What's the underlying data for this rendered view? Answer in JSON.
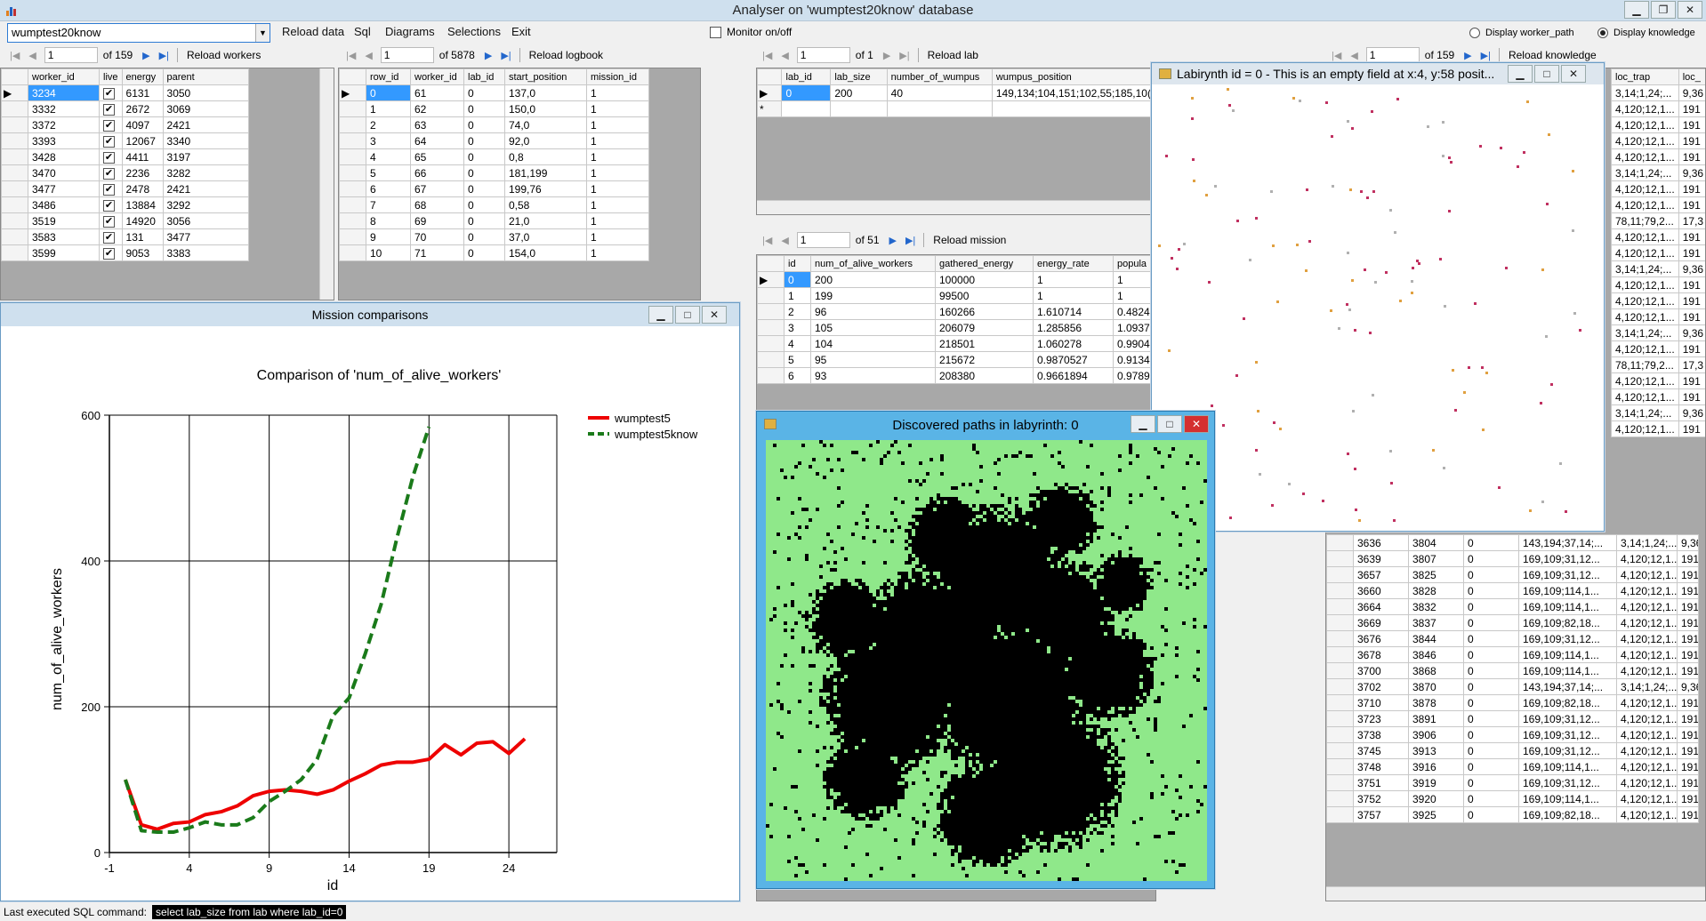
{
  "app": {
    "title": "Analyser on 'wumptest20know' database"
  },
  "menu": {
    "db_combo": "wumptest20know",
    "items": [
      "Reload data",
      "Sql",
      "Diagrams",
      "Selections",
      "Exit"
    ],
    "monitor_label": "Monitor on/off",
    "display_worker_path": "Display worker_path",
    "display_knowledge": "Display knowledge"
  },
  "nav_workers": {
    "pos": "1",
    "of": "of 159",
    "reload": "Reload workers"
  },
  "nav_logbook": {
    "pos": "1",
    "of": "of 5878",
    "reload": "Reload logbook"
  },
  "nav_lab": {
    "pos": "1",
    "of": "of 1",
    "reload": "Reload lab"
  },
  "nav_knowledge": {
    "pos": "1",
    "of": "of 159",
    "reload": "Reload knowledge"
  },
  "nav_mission": {
    "pos": "1",
    "of": "of 51",
    "reload": "Reload mission"
  },
  "workers": {
    "columns": [
      "worker_id",
      "live",
      "energy",
      "parent"
    ],
    "rows": [
      [
        "3234",
        "✔",
        "6131",
        "3050"
      ],
      [
        "3332",
        "✔",
        "2672",
        "3069"
      ],
      [
        "3372",
        "✔",
        "4097",
        "2421"
      ],
      [
        "3393",
        "✔",
        "12067",
        "3340"
      ],
      [
        "3428",
        "✔",
        "4411",
        "3197"
      ],
      [
        "3470",
        "✔",
        "2236",
        "3282"
      ],
      [
        "3477",
        "✔",
        "2478",
        "2421"
      ],
      [
        "3486",
        "✔",
        "13884",
        "3292"
      ],
      [
        "3519",
        "✔",
        "14920",
        "3056"
      ],
      [
        "3583",
        "✔",
        "131",
        "3477"
      ],
      [
        "3599",
        "✔",
        "9053",
        "3383"
      ]
    ]
  },
  "logbook": {
    "columns": [
      "row_id",
      "worker_id",
      "lab_id",
      "start_position",
      "mission_id"
    ],
    "rows": [
      [
        "0",
        "61",
        "0",
        "137,0",
        "1"
      ],
      [
        "1",
        "62",
        "0",
        "150,0",
        "1"
      ],
      [
        "2",
        "63",
        "0",
        "74,0",
        "1"
      ],
      [
        "3",
        "64",
        "0",
        "92,0",
        "1"
      ],
      [
        "4",
        "65",
        "0",
        "0,8",
        "1"
      ],
      [
        "5",
        "66",
        "0",
        "181,199",
        "1"
      ],
      [
        "6",
        "67",
        "0",
        "199,76",
        "1"
      ],
      [
        "7",
        "68",
        "0",
        "0,58",
        "1"
      ],
      [
        "8",
        "69",
        "0",
        "21,0",
        "1"
      ],
      [
        "9",
        "70",
        "0",
        "37,0",
        "1"
      ],
      [
        "10",
        "71",
        "0",
        "154,0",
        "1"
      ]
    ]
  },
  "lab": {
    "columns": [
      "lab_id",
      "lab_size",
      "number_of_wumpus",
      "wumpus_position"
    ],
    "rows": [
      [
        "0",
        "200",
        "40",
        "149,134;104,151;102,55;185,10("
      ]
    ],
    "new_row_marker": "*"
  },
  "mission": {
    "columns": [
      "id",
      "num_of_alive_workers",
      "gathered_energy",
      "energy_rate",
      "popula"
    ],
    "rows": [
      [
        "0",
        "200",
        "100000",
        "1",
        "1"
      ],
      [
        "1",
        "199",
        "99500",
        "1",
        "1"
      ],
      [
        "2",
        "96",
        "160266",
        "1.610714",
        "0.4824"
      ],
      [
        "3",
        "105",
        "206079",
        "1.285856",
        "1.0937"
      ],
      [
        "4",
        "104",
        "218501",
        "1.060278",
        "0.9904"
      ],
      [
        "5",
        "95",
        "215672",
        "0.9870527",
        "0.9134"
      ],
      [
        "6",
        "93",
        "208380",
        "0.9661894",
        "0.9789"
      ]
    ]
  },
  "knowledge": {
    "columns": [
      "loc_trap",
      "loc_"
    ],
    "top_rows": [
      [
        "3,14;1,24;...",
        "9,36"
      ],
      [
        "4,120;12,1...",
        "191"
      ],
      [
        "4,120;12,1...",
        "191"
      ],
      [
        "4,120;12,1...",
        "191"
      ],
      [
        "4,120;12,1...",
        "191"
      ],
      [
        "3,14;1,24;...",
        "9,36"
      ],
      [
        "4,120;12,1...",
        "191"
      ],
      [
        "4,120;12,1...",
        "191"
      ],
      [
        "78,11;79,2...",
        "17,3"
      ],
      [
        "4,120;12,1...",
        "191"
      ],
      [
        "4,120;12,1...",
        "191"
      ],
      [
        "3,14;1,24;...",
        "9,36"
      ],
      [
        "4,120;12,1...",
        "191"
      ],
      [
        "4,120;12,1...",
        "191"
      ],
      [
        "4,120;12,1...",
        "191"
      ],
      [
        "3,14;1,24;...",
        "9,36"
      ],
      [
        "4,120;12,1...",
        "191"
      ],
      [
        "78,11;79,2...",
        "17,3"
      ],
      [
        "4,120;12,1...",
        "191"
      ],
      [
        "4,120;12,1...",
        "191"
      ],
      [
        "3,14;1,24;...",
        "9,36"
      ],
      [
        "4,120;12,1...",
        "191"
      ]
    ],
    "bottom_rows": [
      [
        "3636",
        "3804",
        "0",
        "143,194;37,14;...",
        "3,14;1,24;...",
        "9,36"
      ],
      [
        "3639",
        "3807",
        "0",
        "169,109;31,12...",
        "4,120;12,1...",
        "191"
      ],
      [
        "3657",
        "3825",
        "0",
        "169,109;31,12...",
        "4,120;12,1...",
        "191"
      ],
      [
        "3660",
        "3828",
        "0",
        "169,109;114,1...",
        "4,120;12,1...",
        "191"
      ],
      [
        "3664",
        "3832",
        "0",
        "169,109;114,1...",
        "4,120;12,1...",
        "191"
      ],
      [
        "3669",
        "3837",
        "0",
        "169,109;82,18...",
        "4,120;12,1...",
        "191"
      ],
      [
        "3676",
        "3844",
        "0",
        "169,109;31,12...",
        "4,120;12,1...",
        "191"
      ],
      [
        "3678",
        "3846",
        "0",
        "169,109;114,1...",
        "4,120;12,1...",
        "191"
      ],
      [
        "3700",
        "3868",
        "0",
        "169,109;114,1...",
        "4,120;12,1...",
        "191"
      ],
      [
        "3702",
        "3870",
        "0",
        "143,194;37,14;...",
        "3,14;1,24;...",
        "9,36"
      ],
      [
        "3710",
        "3878",
        "0",
        "169,109;82,18...",
        "4,120;12,1...",
        "191"
      ],
      [
        "3723",
        "3891",
        "0",
        "169,109;31,12...",
        "4,120;12,1...",
        "191"
      ],
      [
        "3738",
        "3906",
        "0",
        "169,109;31,12...",
        "4,120;12,1...",
        "191"
      ],
      [
        "3745",
        "3913",
        "0",
        "169,109;31,12...",
        "4,120;12,1...",
        "191"
      ],
      [
        "3748",
        "3916",
        "0",
        "169,109;114,1...",
        "4,120;12,1...",
        "191"
      ],
      [
        "3751",
        "3919",
        "0",
        "169,109;31,12...",
        "4,120;12,1...",
        "191"
      ],
      [
        "3752",
        "3920",
        "0",
        "169,109;114,1...",
        "4,120;12,1...",
        "191"
      ],
      [
        "3757",
        "3925",
        "0",
        "169,109;82,18...",
        "4,120;12,1...",
        "191"
      ]
    ]
  },
  "windows": {
    "mission_comparisons": "Mission comparisons",
    "discovered_paths": "Discovered paths in labyrinth: 0",
    "labyrinth": "Labirynth id = 0 - This is an empty field at x:4, y:58 posit..."
  },
  "status": {
    "label": "Last executed SQL command:",
    "sql": "select lab_size from lab where lab_id=0"
  },
  "colors": {
    "series1": "#ee0000",
    "series2": "#1a7a1a",
    "path_bg": "#8fe88a",
    "path_black": "#000000",
    "selection": "#3399ff"
  },
  "chart_data": {
    "type": "line",
    "title": "Comparison of  'num_of_alive_workers'",
    "xlabel": "id",
    "ylabel": "num_of_alive_workers",
    "xlim": [
      -1,
      27
    ],
    "ylim": [
      0,
      600
    ],
    "xticks": [
      -1,
      4,
      9,
      14,
      19,
      24
    ],
    "yticks": [
      0,
      200,
      400,
      600
    ],
    "grid": true,
    "legend": "top-right",
    "series": [
      {
        "name": "wumptest5",
        "style": "solid",
        "x": [
          0,
          1,
          2,
          3,
          4,
          5,
          6,
          7,
          8,
          9,
          10,
          11,
          12,
          13,
          14,
          15,
          16,
          17,
          18,
          19,
          20,
          21,
          22,
          23,
          24,
          25
        ],
        "values": [
          100,
          38,
          32,
          40,
          42,
          52,
          56,
          64,
          78,
          84,
          86,
          84,
          80,
          86,
          98,
          108,
          120,
          124,
          124,
          128,
          148,
          134,
          150,
          152,
          136,
          156
        ]
      },
      {
        "name": "wumptest5know",
        "style": "dashed",
        "x": [
          0,
          1,
          2,
          3,
          4,
          5,
          6,
          7,
          8,
          9,
          10,
          11,
          12,
          13,
          14,
          15,
          16,
          17,
          18,
          19
        ],
        "values": [
          100,
          30,
          28,
          28,
          34,
          42,
          38,
          38,
          48,
          70,
          84,
          100,
          128,
          188,
          212,
          272,
          340,
          432,
          516,
          584
        ]
      }
    ]
  }
}
